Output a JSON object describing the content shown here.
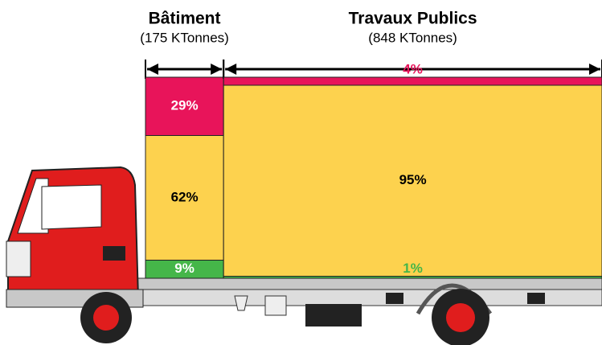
{
  "chart_data": {
    "type": "mekko",
    "columns": [
      {
        "name": "Bâtiment",
        "total": 175,
        "total_label": "(175 KTonnes)",
        "values": [
          29,
          62,
          9
        ],
        "value_labels": [
          "29%",
          "62%",
          "9%"
        ]
      },
      {
        "name": "Travaux Publics",
        "total": 848,
        "total_label": "(848 KTonnes)",
        "values": [
          4,
          95,
          1
        ],
        "value_labels": [
          "4%",
          "95%",
          "1%"
        ]
      }
    ],
    "colors": [
      "#e8145a",
      "#fdd24e",
      "#45b649"
    ]
  }
}
